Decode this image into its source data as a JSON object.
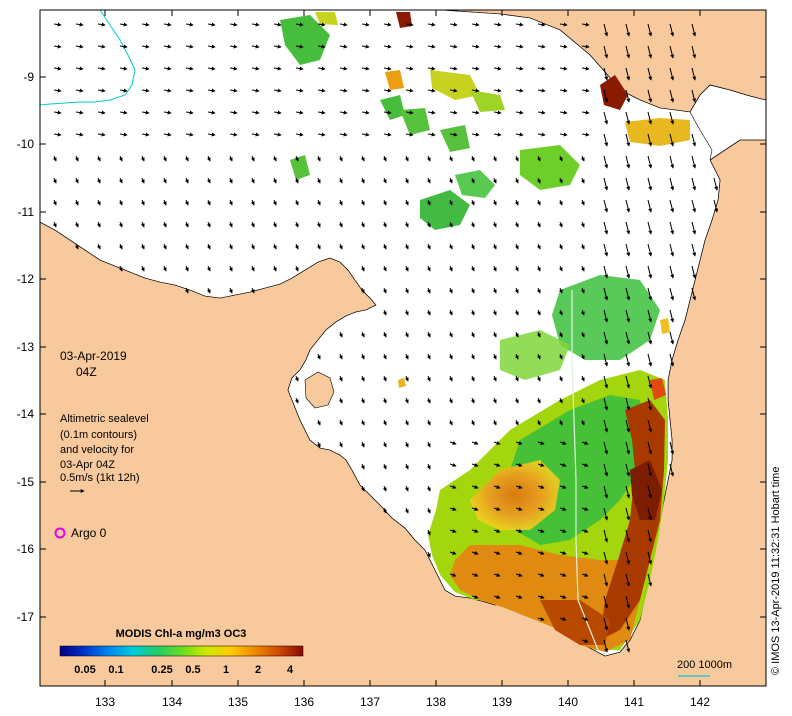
{
  "map": {
    "date": "03-Apr-2019",
    "time": "04Z",
    "legend_lines": [
      "Altimetric sealevel",
      "(0.1m contours)",
      "and velocity for",
      "03-Apr 04Z",
      "0.5m/s (1kt 12h)"
    ],
    "argo_label": "Argo 0",
    "argo_color": "#e600e6",
    "credit": "© IMOS 13-Apr-2019 11:32:31 Hobart time",
    "scale_label": "200  1000m",
    "scale_line_color": "#00cccc",
    "land_color": "#f8c99c",
    "sea_color": "#ffffff",
    "lon_ticks": [
      "133",
      "134",
      "135",
      "136",
      "137",
      "138",
      "139",
      "140",
      "141",
      "142"
    ],
    "lat_ticks": [
      "-9",
      "-10",
      "-11",
      "-12",
      "-13",
      "-14",
      "-15",
      "-16",
      "-17"
    ]
  },
  "colorbar": {
    "title": "MODIS Chl-a mg/m3 OC3",
    "ticks": [
      "0.05",
      "0.1",
      "0.25",
      "0.5",
      "1",
      "2",
      "4"
    ],
    "colors": [
      "#000080",
      "#0033cc",
      "#0088ee",
      "#00ccdd",
      "#22cc66",
      "#66dd22",
      "#cce800",
      "#ffcc00",
      "#f08a00",
      "#d04a00",
      "#8a0a00"
    ]
  }
}
